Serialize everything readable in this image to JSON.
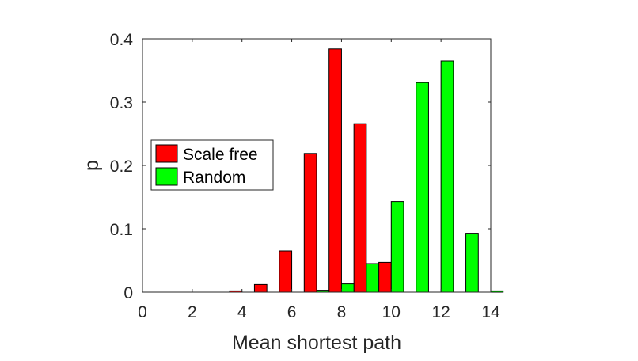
{
  "chart_data": {
    "type": "bar",
    "xlabel": "Mean shortest path",
    "ylabel": "p",
    "xlim": [
      0,
      14
    ],
    "ylim": [
      0,
      0.4
    ],
    "x_ticks": [
      "0",
      "2",
      "4",
      "6",
      "8",
      "10",
      "12",
      "14"
    ],
    "y_ticks": [
      "0",
      "0.1",
      "0.2",
      "0.3",
      "0.4"
    ],
    "grid": false,
    "legend_position": "middle-left",
    "bar_offset": 0.25,
    "bar_width": 0.5,
    "x": [
      1,
      2,
      3,
      4,
      5,
      6,
      7,
      8,
      9,
      10,
      11,
      12,
      13,
      14
    ],
    "series": [
      {
        "name": "Scale free",
        "color": "#ff0000",
        "values": [
          0,
          0,
          0,
          0.002,
          0.012,
          0.065,
          0.219,
          0.384,
          0.266,
          0.047,
          0,
          0,
          0,
          0
        ]
      },
      {
        "name": "Random",
        "color": "#00ff00",
        "values": [
          0,
          0,
          0,
          0,
          0,
          0,
          0.003,
          0.013,
          0.045,
          0.143,
          0.331,
          0.365,
          0.093,
          0.002
        ]
      }
    ]
  }
}
